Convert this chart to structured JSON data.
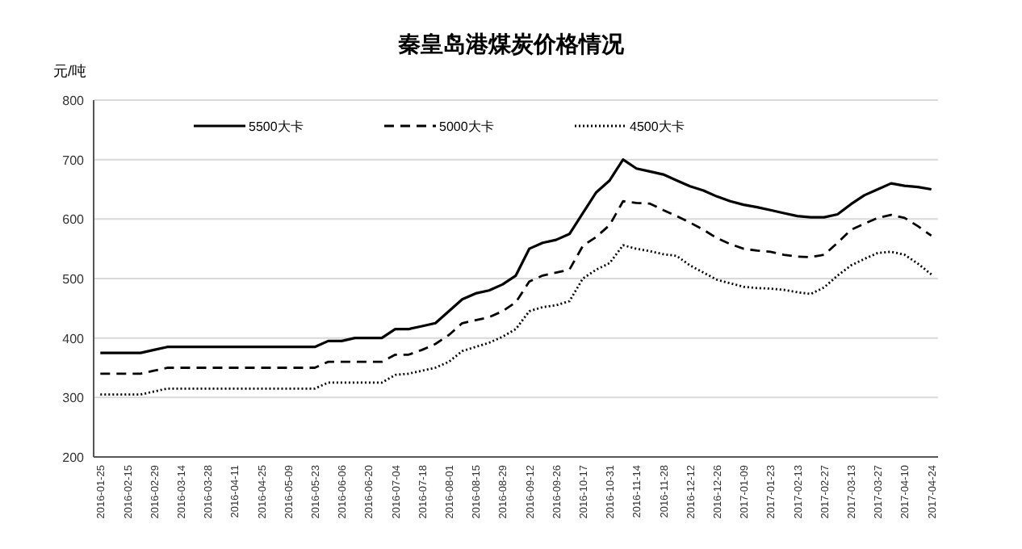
{
  "chart_data": {
    "type": "line",
    "title": "秦皇岛港煤炭价格情况",
    "ylabel": "元/吨",
    "categories": [
      "2016-01-25",
      null,
      "2016-02-15",
      null,
      "2016-02-29",
      null,
      "2016-03-14",
      null,
      "2016-03-28",
      null,
      "2016-04-11",
      null,
      "2016-04-25",
      null,
      "2016-05-09",
      null,
      "2016-05-23",
      null,
      "2016-06-06",
      null,
      "2016-06-20",
      null,
      "2016-07-04",
      null,
      "2016-07-18",
      null,
      "2016-08-01",
      null,
      "2016-08-15",
      null,
      "2016-08-29",
      null,
      "2016-09-12",
      null,
      "2016-09-26",
      null,
      "2016-10-17",
      null,
      "2016-10-31",
      null,
      "2016-11-14",
      null,
      "2016-11-28",
      null,
      "2016-12-12",
      null,
      "2016-12-26",
      null,
      "2017-01-09",
      null,
      "2017-01-23",
      null,
      "2017-02-13",
      null,
      "2017-02-27",
      null,
      "2017-03-13",
      null,
      "2017-03-27",
      null,
      "2017-04-10",
      null,
      "2017-04-24"
    ],
    "series": [
      {
        "name": "5500大卡",
        "color": "#000000",
        "line_style": "solid",
        "values": [
          375,
          375,
          375,
          375,
          380,
          385,
          385,
          385,
          385,
          385,
          385,
          385,
          385,
          385,
          385,
          385,
          385,
          395,
          395,
          400,
          400,
          400,
          415,
          415,
          420,
          425,
          445,
          465,
          475,
          480,
          490,
          505,
          550,
          560,
          565,
          575,
          610,
          645,
          665,
          700,
          685,
          680,
          675,
          665,
          655,
          648,
          638,
          630,
          624,
          620,
          615,
          610,
          605,
          603,
          603,
          608,
          625,
          640,
          650,
          660,
          656,
          654,
          650
        ]
      },
      {
        "name": "5000大卡",
        "color": "#000000",
        "line_style": "dashed",
        "values": [
          340,
          340,
          340,
          340,
          345,
          350,
          350,
          350,
          350,
          350,
          350,
          350,
          350,
          350,
          350,
          350,
          350,
          360,
          360,
          360,
          360,
          360,
          372,
          372,
          380,
          390,
          405,
          425,
          430,
          435,
          445,
          460,
          495,
          505,
          510,
          515,
          555,
          570,
          590,
          630,
          627,
          626,
          615,
          605,
          594,
          582,
          568,
          558,
          550,
          547,
          545,
          540,
          537,
          536,
          540,
          560,
          582,
          592,
          602,
          607,
          602,
          588,
          572
        ]
      },
      {
        "name": "4500大卡",
        "color": "#000000",
        "line_style": "dotted",
        "values": [
          305,
          305,
          305,
          305,
          310,
          315,
          315,
          315,
          315,
          315,
          315,
          315,
          315,
          315,
          315,
          315,
          315,
          325,
          325,
          325,
          325,
          325,
          338,
          340,
          345,
          350,
          360,
          378,
          385,
          392,
          402,
          415,
          445,
          452,
          455,
          462,
          500,
          515,
          526,
          556,
          550,
          546,
          541,
          538,
          522,
          510,
          498,
          492,
          486,
          484,
          483,
          481,
          477,
          474,
          485,
          505,
          522,
          533,
          543,
          545,
          540,
          525,
          507
        ]
      }
    ],
    "ylim": [
      200,
      800
    ],
    "yticks": [
      200,
      300,
      400,
      500,
      600,
      700,
      800
    ],
    "grid": "y",
    "legend": "top"
  }
}
